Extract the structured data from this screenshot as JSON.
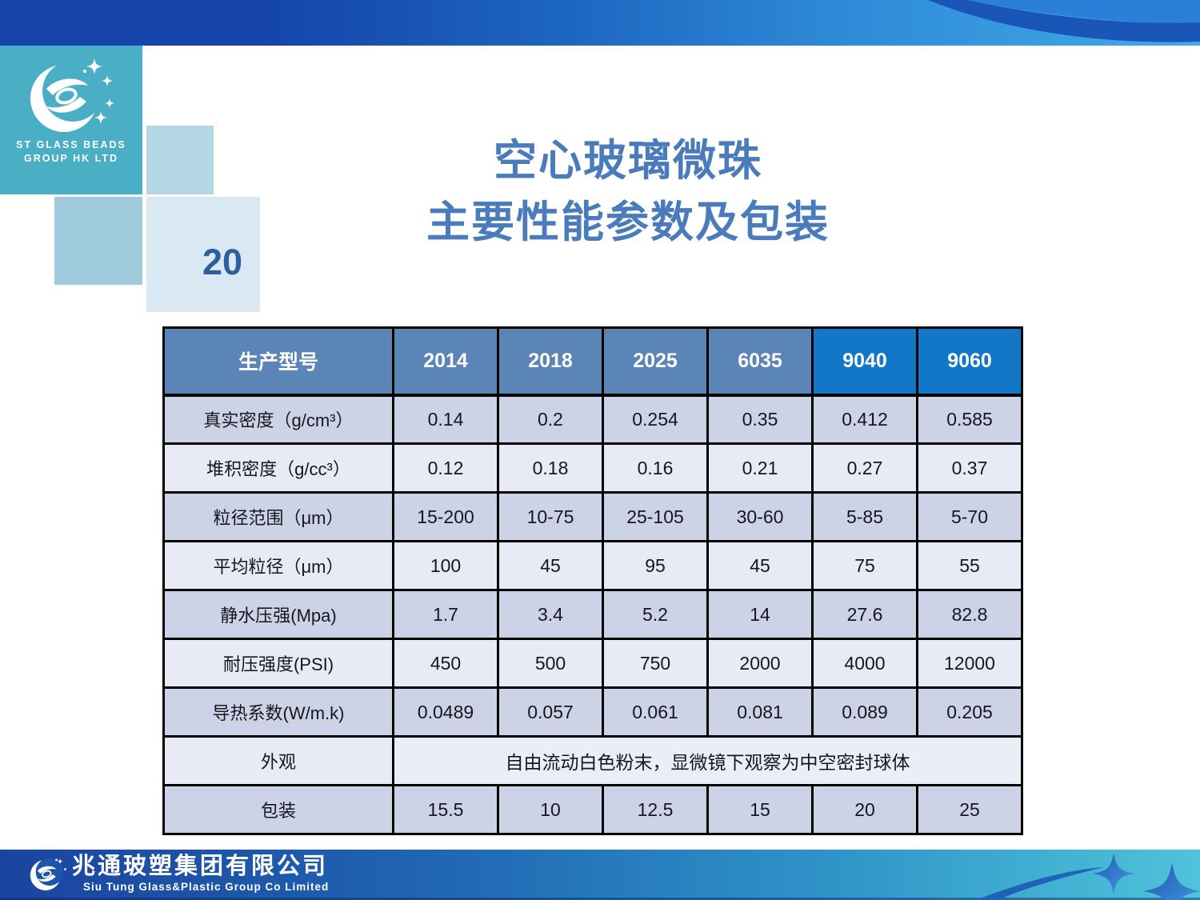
{
  "slide": {
    "page_number": "20",
    "title_line1": "空心玻璃微珠",
    "title_line2": "主要性能参数及包装"
  },
  "logo": {
    "name_line1": "ST GLASS BEADS",
    "name_line2": "GROUP HK LTD"
  },
  "table": {
    "corner_header": "生产型号",
    "models": [
      {
        "label": "2014",
        "highlight": false
      },
      {
        "label": "2018",
        "highlight": false
      },
      {
        "label": "2025",
        "highlight": false
      },
      {
        "label": "6035",
        "highlight": false
      },
      {
        "label": "9040",
        "highlight": true
      },
      {
        "label": "9060",
        "highlight": true
      }
    ],
    "rows": [
      {
        "label": "真实密度（g/cm³）",
        "values": [
          "0.14",
          "0.2",
          "0.254",
          "0.35",
          "0.412",
          "0.585"
        ]
      },
      {
        "label": "堆积密度（g/cc³）",
        "values": [
          "0.12",
          "0.18",
          "0.16",
          "0.21",
          "0.27",
          "0.37"
        ]
      },
      {
        "label": "粒径范围（μm）",
        "values": [
          "15-200",
          "10-75",
          "25-105",
          "30-60",
          "5-85",
          "5-70"
        ]
      },
      {
        "label": "平均粒径（μm）",
        "values": [
          "100",
          "45",
          "95",
          "45",
          "75",
          "55"
        ]
      },
      {
        "label": "静水压强(Mpa)",
        "values": [
          "1.7",
          "3.4",
          "5.2",
          "14",
          "27.6",
          "82.8"
        ]
      },
      {
        "label": "耐压强度(PSI)",
        "values": [
          "450",
          "500",
          "750",
          "2000",
          "4000",
          "12000"
        ]
      },
      {
        "label": "导热系数(W/m.k)",
        "values": [
          "0.0489",
          "0.057",
          "0.061",
          "0.081",
          "0.089",
          "0.205"
        ]
      },
      {
        "label": "外观",
        "merged": "自由流动白色粉末，显微镜下观察为中空密封球体"
      },
      {
        "label": "包装",
        "values": [
          "15.5",
          "10",
          "12.5",
          "15",
          "20",
          "25"
        ]
      }
    ]
  },
  "footer": {
    "company_cn": "兆通玻塑集团有限公司",
    "company_en": "Siu Tung Glass&Plastic Group Co Limited"
  },
  "colors": {
    "header_blue": "#5b84b7",
    "header_highlight_blue": "#1377c8",
    "row_dark": "#ccd3e6",
    "row_light": "#e8ebf5",
    "title_blue": "#4a7cbc",
    "page_number_blue": "#2d5f9d",
    "logo_teal": "#4aafc5",
    "top_band_dark": "#1545ab",
    "top_band_light": "#41aae8",
    "footer_left": "#1b449e",
    "footer_right": "#4fc3da",
    "table_border": "#000000"
  }
}
